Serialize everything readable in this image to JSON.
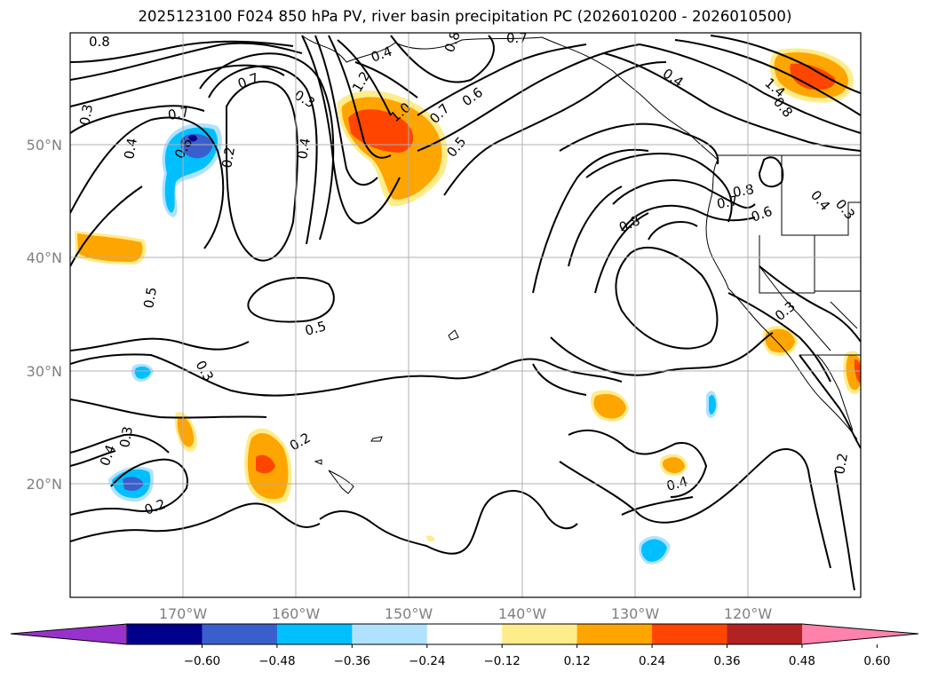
{
  "title": "2025123100 F024 850 hPa PV, river basin precipitation PC (2026010200 - 2026010500)",
  "map": {
    "lon_labels": [
      "170°W",
      "160°W",
      "150°W",
      "140°W",
      "130°W",
      "120°W"
    ],
    "lat_labels": [
      "50°N",
      "40°N",
      "30°N",
      "20°N"
    ]
  },
  "contour_labels": [
    "0.8",
    "0.4",
    "0.8",
    "0.7",
    "0.3",
    "0.7",
    "0.6",
    "0.4",
    "0.2",
    "0.4",
    "1.2",
    "1.0",
    "0.7",
    "0.6",
    "0.5",
    "0.4",
    "1.4",
    "0.8",
    "0.4",
    "0.7",
    "0.8",
    "0.6",
    "0.8",
    "0.5",
    "0.5",
    "0.3",
    "0.3",
    "0.4",
    "0.3",
    "0.2",
    "0.2",
    "0.4",
    "0.2",
    "0.3",
    "0.7",
    "0.3"
  ],
  "colorbar": {
    "ticks": [
      "−0.60",
      "−0.48",
      "−0.36",
      "−0.24",
      "−0.12",
      "0.12",
      "0.24",
      "0.36",
      "0.48",
      "0.60"
    ],
    "colors": [
      "#9932cc",
      "#00008b",
      "#3a5fcd",
      "#00bfff",
      "#b0e2ff",
      "#ffffff",
      "#ffec8b",
      "#ffa500",
      "#ff4500",
      "#b22222",
      "#ff82ab"
    ]
  }
}
